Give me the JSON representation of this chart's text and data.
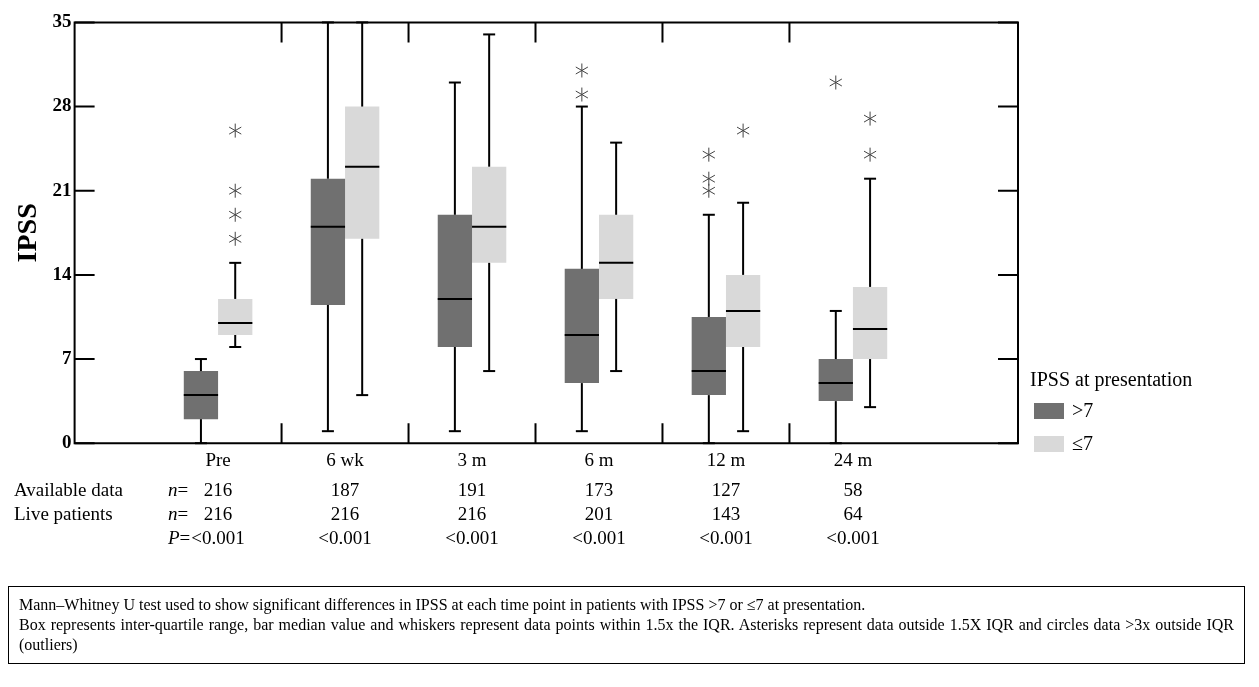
{
  "chart_data": {
    "type": "box",
    "ylabel": "IPSS",
    "legend_title": "IPSS at presentation",
    "legend": "right",
    "ylim": [
      0,
      35
    ],
    "yticks": [
      0,
      7,
      14,
      21,
      28,
      35
    ],
    "categories": [
      "Pre",
      "6 wk",
      "3 m",
      "6 m",
      "12 m",
      "24 m"
    ],
    "series": [
      {
        "name": ">7",
        "color": "#707070",
        "boxes": [
          {
            "low": 0,
            "q1": 2,
            "median": 4,
            "q3": 6,
            "high": 7
          },
          {
            "low": 1,
            "q1": 11.5,
            "median": 18,
            "q3": 22,
            "high": 35
          },
          {
            "low": 1,
            "q1": 8,
            "median": 12,
            "q3": 19,
            "high": 30
          },
          {
            "low": 1,
            "q1": 5,
            "median": 9,
            "q3": 14.5,
            "high": 28,
            "outliers": [
              29,
              31
            ]
          },
          {
            "low": 0,
            "q1": 4,
            "median": 6,
            "q3": 10.5,
            "high": 19,
            "outliers": [
              21,
              22,
              24
            ]
          },
          {
            "low": 0,
            "q1": 3.5,
            "median": 5,
            "q3": 7,
            "high": 11,
            "outliers": [
              30
            ]
          }
        ]
      },
      {
        "name": "≤7",
        "color": "#d9d9d9",
        "boxes": [
          {
            "low": 8,
            "q1": 9,
            "median": 10,
            "q3": 12,
            "high": 15,
            "outliers": [
              17,
              19,
              21,
              26
            ]
          },
          {
            "low": 4,
            "q1": 17,
            "median": 23,
            "q3": 28,
            "high": 35
          },
          {
            "low": 6,
            "q1": 15,
            "median": 18,
            "q3": 23,
            "high": 34
          },
          {
            "low": 6,
            "q1": 12,
            "median": 15,
            "q3": 19,
            "high": 25
          },
          {
            "low": 1,
            "q1": 8,
            "median": 11,
            "q3": 14,
            "high": 20,
            "outliers": [
              26
            ]
          },
          {
            "low": 3,
            "q1": 7,
            "median": 9.5,
            "q3": 13,
            "high": 22,
            "outliers": [
              24,
              27
            ]
          }
        ]
      }
    ],
    "annotations": [
      "Available data",
      "n=",
      "216",
      "187",
      "191",
      "173",
      "127",
      "58",
      "Live patients",
      "n=",
      "216",
      "216",
      "216",
      "201",
      "143",
      "64",
      "P=",
      "<0.001",
      "<0.001",
      "<0.001",
      "<0.001",
      "<0.001",
      "<0.001",
      "Mann–Whitney U test used to show significant differences in IPSS at each time point in patients with IPSS >7 or ≤7 at presentation.",
      "Box represents inter-quartile range, bar median value and whiskers represent data points within 1.5x the IQR. Asterisks represent data outside 1.5X IQR and circles data >3x outside IQR (outliers)"
    ]
  }
}
